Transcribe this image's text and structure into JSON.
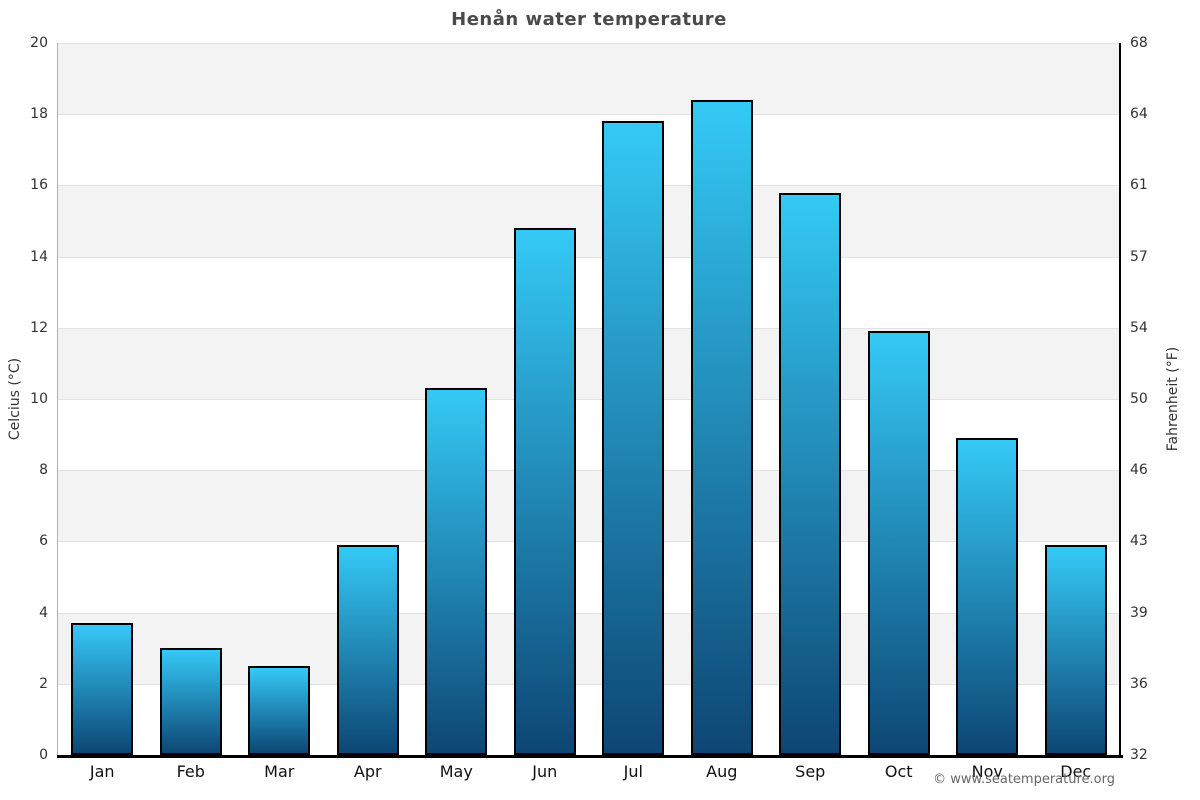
{
  "chart_data": {
    "type": "bar",
    "title": "Henån water temperature",
    "categories": [
      "Jan",
      "Feb",
      "Mar",
      "Apr",
      "May",
      "Jun",
      "Jul",
      "Aug",
      "Sep",
      "Oct",
      "Nov",
      "Dec"
    ],
    "values": [
      3.7,
      3.0,
      2.5,
      5.9,
      10.3,
      14.8,
      17.8,
      18.4,
      15.8,
      11.9,
      8.9,
      5.9
    ],
    "series_name": "Water temperature (°C)",
    "ylabel_left": "Celcius (°C)",
    "ylabel_right": "Fahrenheit (°F)",
    "xlabel": "",
    "ylim": [
      0,
      20
    ],
    "celsius_ticks": [
      0,
      2,
      4,
      6,
      8,
      10,
      12,
      14,
      16,
      18,
      20
    ],
    "fahrenheit_tick_labels": [
      "32",
      "36",
      "39",
      "43",
      "46",
      "50",
      "54",
      "57",
      "61",
      "64",
      "68"
    ],
    "grid": "alternating horizontal bands every 2°C with light gridlines",
    "legend": "none"
  },
  "footer": {
    "copyright": "© www.seatemperature.org"
  },
  "colors": {
    "band_gray": "#f3f3f3",
    "band_white": "#ffffff",
    "gridline": "#e2e2e2",
    "bar_gradient_top": "#35c9f6",
    "bar_gradient_bottom": "#0d4674",
    "bar_border": "#000000",
    "axis_left": "#b0b0b0",
    "axis_right": "#000000",
    "axis_bottom": "#000000",
    "title_text": "#4a4a4a",
    "tick_text": "#333333",
    "month_text": "#111111",
    "copyright_text": "#666666"
  }
}
